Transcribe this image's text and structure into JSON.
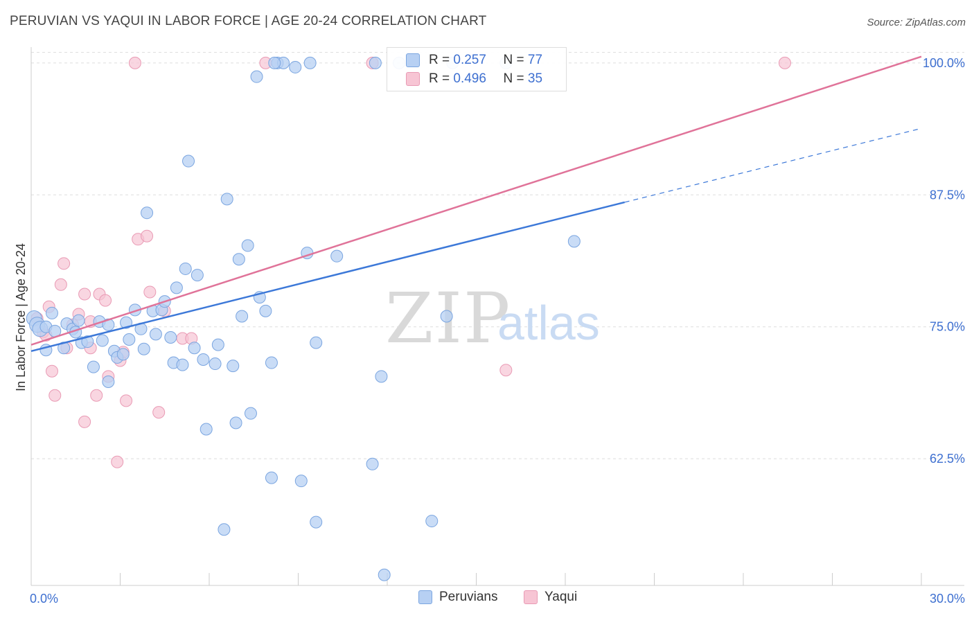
{
  "title": "PERUVIAN VS YAQUI IN LABOR FORCE | AGE 20-24 CORRELATION CHART",
  "source": "Source: ZipAtlas.com",
  "watermark": {
    "zip": "ZIP",
    "atlas": "atlas"
  },
  "legend": {
    "r_label": "R =",
    "n_label": "N =",
    "series": [
      {
        "name": "Peruvians",
        "r": "0.257",
        "n": "77",
        "fill": "#b7d0f3",
        "stroke": "#7aa5e0"
      },
      {
        "name": "Yaqui",
        "r": "0.496",
        "n": "35",
        "fill": "#f7c5d4",
        "stroke": "#e99ab4"
      }
    ]
  },
  "colors": {
    "peruvians_line": "#3c78d8",
    "yaqui_line": "#e07399",
    "tick_label": "#3d6fd0",
    "grid": "#dddddd"
  },
  "chart_data": {
    "type": "scatter",
    "xlabel": "",
    "ylabel": "In Labor Force | Age 20-24",
    "xlim": [
      0,
      30
    ],
    "ylim": [
      50.5,
      101.5
    ],
    "x_tick_labels": [
      {
        "value": 0,
        "label": "0.0%"
      },
      {
        "value": 30,
        "label": "30.0%"
      }
    ],
    "y_tick_labels": [
      {
        "value": 100,
        "label": "100.0%"
      },
      {
        "value": 87.5,
        "label": "87.5%"
      },
      {
        "value": 75,
        "label": "75.0%"
      },
      {
        "value": 62.5,
        "label": "62.5%"
      }
    ],
    "x_minor_ticks": [
      3,
      6,
      9,
      12,
      15,
      18,
      21,
      24,
      27,
      30
    ],
    "grid": true,
    "series": [
      {
        "name": "Peruvians",
        "trendline": {
          "x": [
            0,
            20,
            30
          ],
          "y": [
            72.7,
            86.8,
            93.8
          ],
          "solid_until": 20
        },
        "points": [
          [
            0.1,
            75.8
          ],
          [
            0.2,
            75.2
          ],
          [
            0.3,
            74.8
          ],
          [
            0.5,
            75.0
          ],
          [
            0.5,
            72.8
          ],
          [
            0.7,
            76.3
          ],
          [
            0.8,
            74.6
          ],
          [
            1.1,
            73.0
          ],
          [
            1.2,
            75.3
          ],
          [
            1.4,
            74.8
          ],
          [
            1.5,
            74.5
          ],
          [
            1.6,
            75.6
          ],
          [
            1.7,
            73.5
          ],
          [
            1.9,
            73.6
          ],
          [
            2.1,
            71.2
          ],
          [
            2.3,
            75.5
          ],
          [
            2.4,
            73.7
          ],
          [
            2.6,
            75.2
          ],
          [
            2.6,
            69.8
          ],
          [
            2.8,
            72.7
          ],
          [
            2.9,
            72.1
          ],
          [
            3.1,
            72.4
          ],
          [
            3.2,
            75.4
          ],
          [
            3.3,
            73.8
          ],
          [
            3.5,
            76.6
          ],
          [
            3.7,
            74.8
          ],
          [
            3.8,
            72.9
          ],
          [
            3.9,
            85.8
          ],
          [
            4.1,
            76.5
          ],
          [
            4.2,
            74.3
          ],
          [
            4.4,
            76.6
          ],
          [
            4.5,
            77.4
          ],
          [
            4.7,
            74.0
          ],
          [
            4.8,
            71.6
          ],
          [
            4.9,
            78.7
          ],
          [
            5.1,
            71.4
          ],
          [
            5.2,
            80.5
          ],
          [
            5.3,
            90.7
          ],
          [
            5.5,
            73.0
          ],
          [
            5.6,
            79.9
          ],
          [
            5.8,
            71.9
          ],
          [
            5.9,
            65.3
          ],
          [
            6.2,
            71.5
          ],
          [
            6.3,
            73.3
          ],
          [
            6.5,
            55.8
          ],
          [
            6.6,
            87.1
          ],
          [
            6.8,
            71.3
          ],
          [
            6.9,
            65.9
          ],
          [
            7.0,
            81.4
          ],
          [
            7.1,
            76.0
          ],
          [
            7.3,
            82.7
          ],
          [
            7.4,
            66.8
          ],
          [
            7.6,
            98.7
          ],
          [
            7.7,
            77.8
          ],
          [
            7.9,
            76.5
          ],
          [
            8.1,
            71.6
          ],
          [
            8.1,
            60.7
          ],
          [
            8.3,
            100.0
          ],
          [
            8.5,
            100.0
          ],
          [
            8.9,
            99.6
          ],
          [
            9.1,
            60.4
          ],
          [
            9.3,
            82.0
          ],
          [
            9.4,
            100.0
          ],
          [
            9.6,
            73.5
          ],
          [
            9.6,
            56.5
          ],
          [
            10.3,
            81.7
          ],
          [
            11.5,
            62.0
          ],
          [
            11.6,
            100.0
          ],
          [
            11.8,
            70.3
          ],
          [
            11.9,
            51.5
          ],
          [
            12.4,
            100.0
          ],
          [
            13.5,
            56.6
          ],
          [
            14.0,
            76.0
          ],
          [
            14.2,
            100.0
          ],
          [
            16.0,
            100.0
          ],
          [
            18.3,
            83.1
          ],
          [
            8.2,
            100.0
          ]
        ]
      },
      {
        "name": "Yaqui",
        "trendline": {
          "x": [
            0,
            30
          ],
          "y": [
            73.3,
            100.6
          ],
          "solid_until": 30
        },
        "points": [
          [
            0.2,
            75.8
          ],
          [
            0.4,
            74.5
          ],
          [
            0.5,
            74.2
          ],
          [
            0.6,
            76.9
          ],
          [
            0.7,
            70.8
          ],
          [
            0.8,
            68.5
          ],
          [
            1.0,
            79.0
          ],
          [
            1.1,
            81.0
          ],
          [
            1.2,
            73.0
          ],
          [
            1.4,
            75.2
          ],
          [
            1.6,
            76.2
          ],
          [
            1.8,
            66.0
          ],
          [
            1.8,
            78.1
          ],
          [
            2.0,
            73.0
          ],
          [
            2.2,
            68.5
          ],
          [
            2.3,
            78.1
          ],
          [
            2.5,
            77.5
          ],
          [
            2.6,
            70.3
          ],
          [
            2.9,
            62.2
          ],
          [
            3.0,
            71.8
          ],
          [
            3.1,
            72.6
          ],
          [
            3.2,
            68.0
          ],
          [
            3.5,
            100.0
          ],
          [
            3.6,
            83.3
          ],
          [
            3.9,
            83.6
          ],
          [
            4.0,
            78.3
          ],
          [
            4.3,
            66.9
          ],
          [
            4.5,
            76.5
          ],
          [
            5.1,
            73.9
          ],
          [
            5.4,
            73.9
          ],
          [
            7.9,
            100.0
          ],
          [
            11.5,
            100.0
          ],
          [
            16.0,
            70.9
          ],
          [
            25.4,
            100.0
          ],
          [
            2.0,
            75.5
          ]
        ]
      }
    ]
  }
}
